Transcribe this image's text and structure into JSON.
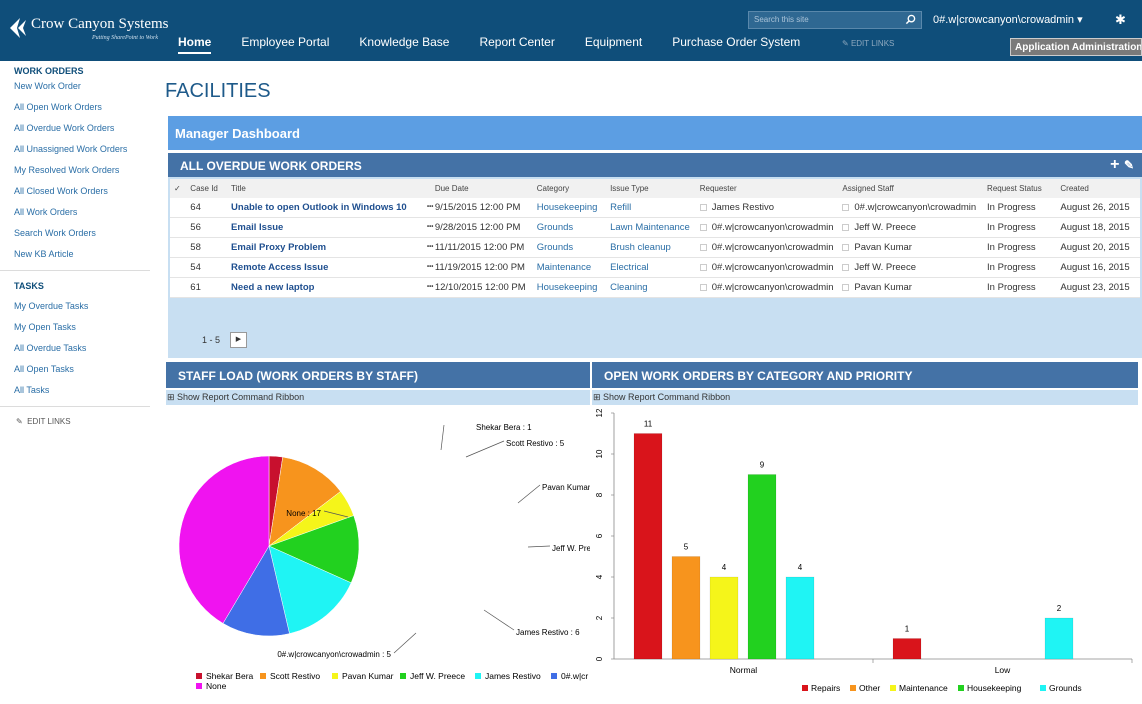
{
  "brand": {
    "name": "Crow Canyon Systems",
    "tagline": "Putting SharePoint to Work"
  },
  "nav": [
    {
      "label": "Home",
      "active": true
    },
    {
      "label": "Employee Portal"
    },
    {
      "label": "Knowledge Base"
    },
    {
      "label": "Report Center"
    },
    {
      "label": "Equipment"
    },
    {
      "label": "Purchase Order System"
    }
  ],
  "edit_links_top": "EDIT LINKS",
  "search": {
    "placeholder": "Search this site"
  },
  "user": "0#.w|crowcanyon\\crowadmin",
  "app_admin": "Application Administration",
  "left_nav": {
    "work_orders_header": "WORK ORDERS",
    "work_orders": [
      "New Work Order",
      "All Open Work Orders",
      "All Overdue Work Orders",
      "All Unassigned Work Orders",
      "My Resolved Work Orders",
      "All Closed Work Orders",
      "All Work Orders",
      "Search Work Orders",
      "New KB Article"
    ],
    "tasks_header": "TASKS",
    "tasks": [
      "My Overdue Tasks",
      "My Open Tasks",
      "All Overdue Tasks",
      "All Open Tasks",
      "All Tasks"
    ],
    "edit_links": "EDIT LINKS"
  },
  "page_title": "FACILITIES",
  "dashboard_title": "Manager Dashboard",
  "overdue": {
    "title": "ALL OVERDUE WORK ORDERS",
    "columns": [
      "Case Id",
      "Title",
      "Due Date",
      "Category",
      "Issue Type",
      "Requester",
      "Assigned Staff",
      "Request Status",
      "Created"
    ],
    "rows": [
      {
        "id": "64",
        "title": "Unable to open Outlook in Windows 10",
        "due": "9/15/2015 12:00 PM",
        "category": "Housekeeping",
        "issue": "Refill",
        "requester": "James Restivo",
        "staff": "0#.w|crowcanyon\\crowadmin",
        "status": "In Progress",
        "created": "August 26, 2015"
      },
      {
        "id": "56",
        "title": "Email Issue",
        "due": "9/28/2015 12:00 PM",
        "category": "Grounds",
        "issue": "Lawn Maintenance",
        "requester": "0#.w|crowcanyon\\crowadmin",
        "staff": "Jeff W. Preece",
        "status": "In Progress",
        "created": "August 18, 2015"
      },
      {
        "id": "58",
        "title": "Email Proxy Problem",
        "due": "11/11/2015 12:00 PM",
        "category": "Grounds",
        "issue": "Brush cleanup",
        "requester": "0#.w|crowcanyon\\crowadmin",
        "staff": "Pavan Kumar",
        "status": "In Progress",
        "created": "August 20, 2015"
      },
      {
        "id": "54",
        "title": "Remote Access Issue",
        "due": "11/19/2015 12:00 PM",
        "category": "Maintenance",
        "issue": "Electrical",
        "requester": "0#.w|crowcanyon\\crowadmin",
        "staff": "Jeff W. Preece",
        "status": "In Progress",
        "created": "August 16, 2015"
      },
      {
        "id": "61",
        "title": "Need a new laptop",
        "due": "12/10/2015 12:00 PM",
        "category": "Housekeeping",
        "issue": "Cleaning",
        "requester": "0#.w|crowcanyon\\crowadmin",
        "staff": "Pavan Kumar",
        "status": "In Progress",
        "created": "August 23, 2015"
      }
    ],
    "pager": "1 - 5"
  },
  "staff_panel": {
    "title": "STAFF LOAD (WORK ORDERS BY STAFF)",
    "ribbon": "Show Report Command Ribbon"
  },
  "cat_panel": {
    "title": "OPEN WORK ORDERS BY CATEGORY AND PRIORITY",
    "ribbon": "Show Report Command Ribbon"
  },
  "chart_data": [
    {
      "type": "pie",
      "categories": [
        "Shekar Bera",
        "Scott Restivo",
        "Pavan Kumar",
        "Jeff W. Preece",
        "James Restivo",
        "0#.w|crowcanyon\\crowadmin",
        "None"
      ],
      "values": [
        1,
        5,
        2,
        5,
        6,
        5,
        17
      ],
      "slice_labels": [
        "Shekar Bera : 1",
        "Scott Restivo : 5",
        "Pavan Kumar",
        "Jeff W. Pre",
        "James Restivo : 6",
        "0#.w|crowcanyon\\crowadmin : 5",
        "None : 17"
      ],
      "legend_items": [
        "Shekar Bera",
        "Scott Restivo",
        "Pavan Kumar",
        "Jeff W. Preece",
        "James Restivo",
        "0#.w|cr",
        "None"
      ],
      "colors": [
        "#c8102e",
        "#f7941d",
        "#f5f51a",
        "#22d11f",
        "#1ff4f4",
        "#3f6ee6",
        "#f013f0"
      ],
      "legend": "bottom"
    },
    {
      "type": "bar",
      "categories": [
        "Normal",
        "Low"
      ],
      "series": [
        {
          "name": "Repairs",
          "values": [
            11,
            1
          ],
          "color": "#d9141b"
        },
        {
          "name": "Other",
          "values": [
            5,
            0
          ],
          "color": "#f7941d"
        },
        {
          "name": "Maintenance",
          "values": [
            4,
            0
          ],
          "color": "#f5f51a"
        },
        {
          "name": "Housekeeping",
          "values": [
            9,
            0
          ],
          "color": "#22d11f"
        },
        {
          "name": "Grounds",
          "values": [
            4,
            2
          ],
          "color": "#1ff4f4"
        }
      ],
      "ylim": [
        0,
        12
      ],
      "yticks": [
        "0",
        "2",
        "4",
        "6",
        "8",
        "10",
        "12"
      ],
      "legend": "bottom"
    }
  ]
}
